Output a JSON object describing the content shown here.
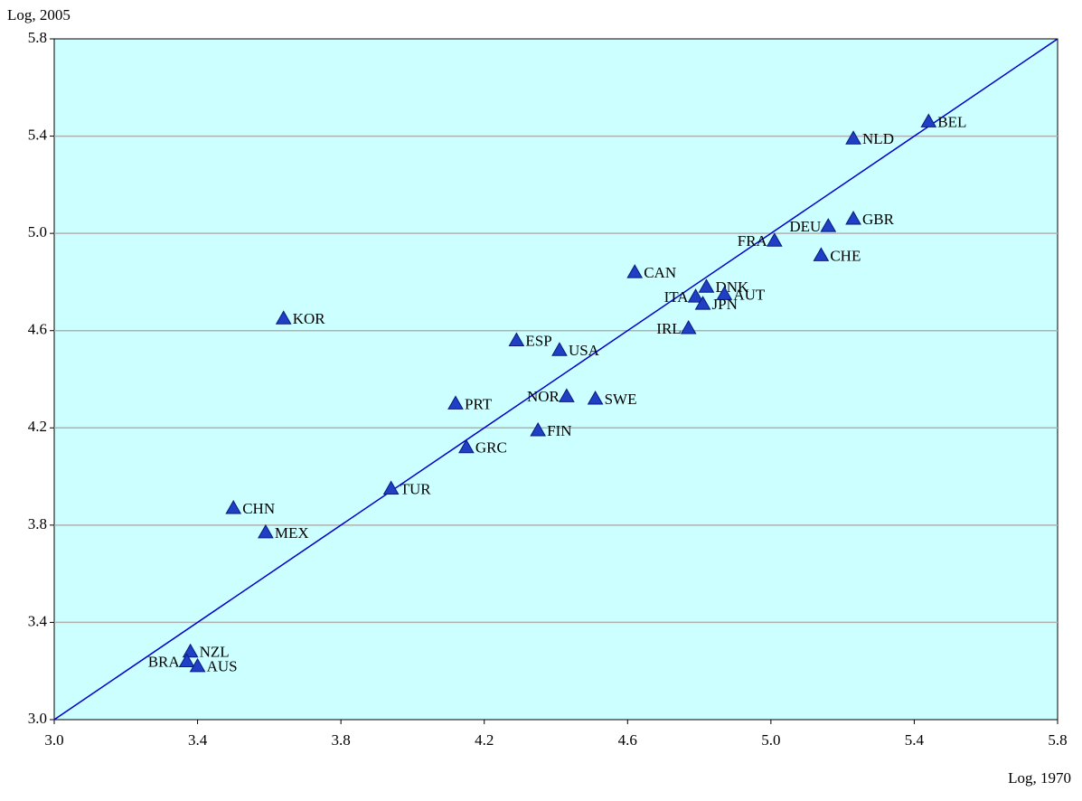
{
  "chart_data": {
    "type": "scatter",
    "x_label": "Log, 1970",
    "y_label": "Log, 2005",
    "labels": [
      "BEL",
      "NLD",
      "GBR",
      "DEU",
      "FRA",
      "CHE",
      "CAN",
      "DNK",
      "ITA",
      "AUT",
      "JPN",
      "IRL",
      "KOR",
      "ESP",
      "USA",
      "PRT",
      "NOR",
      "SWE",
      "FIN",
      "GRC",
      "TUR",
      "CHN",
      "MEX",
      "NZL",
      "BRA",
      "AUS"
    ],
    "x": [
      5.44,
      5.23,
      5.23,
      5.16,
      5.01,
      5.14,
      4.62,
      4.82,
      4.79,
      4.87,
      4.81,
      4.77,
      3.64,
      4.29,
      4.41,
      4.12,
      4.43,
      4.51,
      4.35,
      4.15,
      3.94,
      3.5,
      3.59,
      3.38,
      3.37,
      3.4
    ],
    "y": [
      5.46,
      5.39,
      5.06,
      5.03,
      4.97,
      4.91,
      4.84,
      4.78,
      4.74,
      4.75,
      4.71,
      4.61,
      4.65,
      4.56,
      4.52,
      4.3,
      4.33,
      4.32,
      4.19,
      4.12,
      3.95,
      3.87,
      3.77,
      3.28,
      3.24,
      3.22
    ],
    "color": "#1f3fc4",
    "xlim": [
      3.0,
      5.8
    ],
    "ylim": [
      3.0,
      5.8
    ],
    "xticks": [
      {
        "value": 3,
        "label": "3.0"
      },
      {
        "value": 3.4,
        "label": "3.4"
      },
      {
        "value": 3.8,
        "label": "3.8"
      },
      {
        "value": 4.2,
        "label": "4.2"
      },
      {
        "value": 4.6,
        "label": "4.6"
      },
      {
        "value": 5,
        "label": "5.0"
      },
      {
        "value": 5.4,
        "label": "5.4"
      },
      {
        "value": 5.8,
        "label": "5.8"
      }
    ],
    "yticks": [
      {
        "value": 3,
        "label": "3.0"
      },
      {
        "value": 3.4,
        "label": "3.4"
      },
      {
        "value": 3.8,
        "label": "3.8"
      },
      {
        "value": 4.2,
        "label": "4.2"
      },
      {
        "value": 4.6,
        "label": "4.6"
      },
      {
        "value": 5,
        "label": "5.0"
      },
      {
        "value": 5.4,
        "label": "5.4"
      },
      {
        "value": 5.8,
        "label": "5.8"
      }
    ],
    "grid": true,
    "diagonal": true
  }
}
